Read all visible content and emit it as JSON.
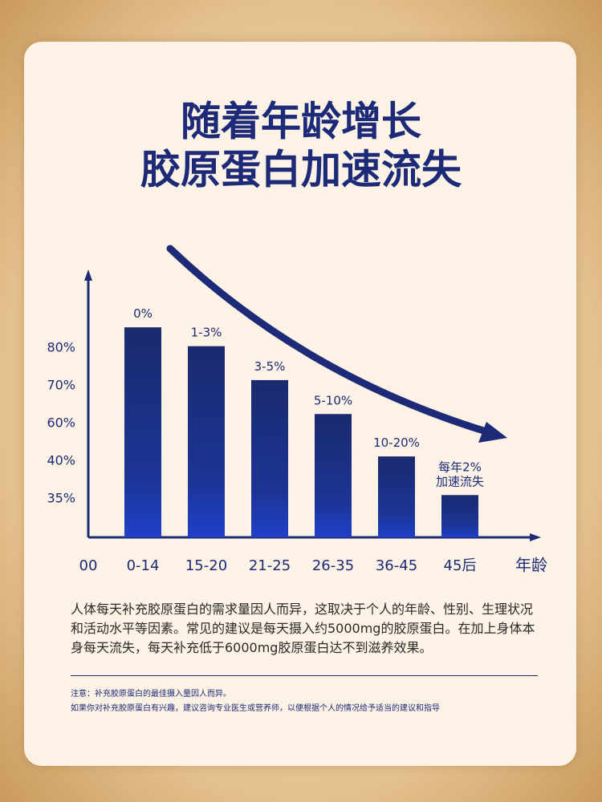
{
  "chart_data": {
    "type": "bar",
    "title_lines": [
      "随着年龄增长",
      "胶原蛋白加速流失"
    ],
    "categories": [
      "0-14",
      "15-20",
      "21-25",
      "26-35",
      "36-45",
      "45后"
    ],
    "origin_label": "00",
    "x_label": "年龄",
    "values": [
      85.5,
      80.5,
      71.5,
      62.5,
      42.5,
      35.5
    ],
    "bar_labels": [
      "0%",
      "1-3%",
      "3-5%",
      "5-10%",
      "10-20%",
      "每年2%\n加速流失"
    ],
    "ylim": [
      0,
      100
    ],
    "yticks": [
      {
        "value": 35,
        "label": "35%"
      },
      {
        "value": 40,
        "label": "40%"
      },
      {
        "value": 60,
        "label": "60%"
      },
      {
        "value": 70,
        "label": "70%"
      },
      {
        "value": 80,
        "label": "80%"
      }
    ],
    "color": "#1c2f8c"
  },
  "body": {
    "paragraph": "人体每天补充胶原蛋白的需求量因人而异，这取决于个人的年龄、性别、生理状况和活动水平等因素。常见的建议是每天摄入约5000mg的胶原蛋白。在加上身体本身每天流失，每天补充低于6000mg胶原蛋白达不到滋养效果。",
    "notes": [
      "注意：补充胶原蛋白的最佳摄入量因人而异。",
      "如果你对补充胶原蛋白有兴趣，建议咨询专业医生或营养师，以便根据个人的情况给予适当的建议和指导"
    ]
  }
}
